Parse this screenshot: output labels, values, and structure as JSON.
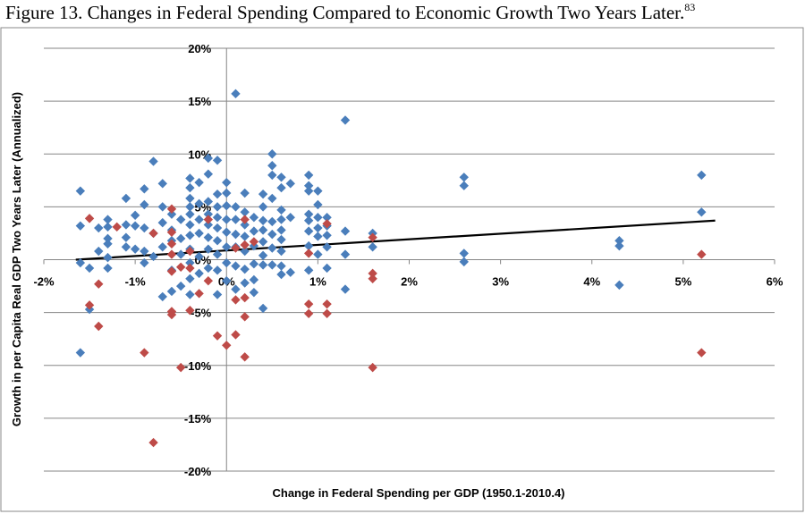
{
  "figure": {
    "title": "Figure 13. Changes in Federal Spending Compared to Economic Growth Two Years Later.",
    "footnote": "83"
  },
  "chart_data": {
    "type": "scatter",
    "title": "",
    "xlabel": "Change in Federal Spending per GDP (1950.1-2010.4)",
    "ylabel": "Growth in per Capita Real GDP Two Years Later (Annualized)",
    "xlim": [
      -2,
      6
    ],
    "ylim": [
      -20,
      20
    ],
    "x_ticks": [
      -2,
      -1,
      0,
      1,
      2,
      3,
      4,
      5,
      6
    ],
    "y_ticks": [
      -20,
      -15,
      -10,
      -5,
      0,
      5,
      10,
      15,
      20
    ],
    "x_tick_labels": [
      "-2%",
      "-1%",
      "0%",
      "1%",
      "2%",
      "3%",
      "4%",
      "5%",
      "6%"
    ],
    "y_tick_labels": [
      "-20%",
      "-15%",
      "-10%",
      "-5%",
      "0%",
      "5%",
      "10%",
      "15%",
      "20%"
    ],
    "grid": "horizontal",
    "colors": {
      "blue": "#4a7ebb",
      "red": "#be4b48",
      "trend": "#000000",
      "grid": "#868686"
    },
    "trendline": {
      "x1": -1.65,
      "y1": 0.0,
      "x2": 5.35,
      "y2": 3.7
    },
    "series": [
      {
        "color": "blue",
        "points": [
          [
            -1.6,
            6.5
          ],
          [
            -1.6,
            3.2
          ],
          [
            -1.6,
            -0.3
          ],
          [
            -1.6,
            -8.8
          ],
          [
            -1.5,
            -0.8
          ],
          [
            -1.5,
            -4.7
          ],
          [
            -1.4,
            3.0
          ],
          [
            -1.4,
            0.8
          ],
          [
            -1.3,
            3.8
          ],
          [
            -1.3,
            3.1
          ],
          [
            -1.3,
            2.0
          ],
          [
            -1.3,
            1.5
          ],
          [
            -1.3,
            0.2
          ],
          [
            -1.3,
            -0.8
          ],
          [
            -1.1,
            5.8
          ],
          [
            -1.1,
            3.3
          ],
          [
            -1.1,
            2.1
          ],
          [
            -1.1,
            1.2
          ],
          [
            -1.0,
            4.2
          ],
          [
            -1.0,
            3.2
          ],
          [
            -1.0,
            1.0
          ],
          [
            -0.9,
            6.7
          ],
          [
            -0.9,
            5.2
          ],
          [
            -0.9,
            3.0
          ],
          [
            -0.9,
            0.8
          ],
          [
            -0.9,
            -0.3
          ],
          [
            -0.8,
            9.3
          ],
          [
            -0.8,
            2.5
          ],
          [
            -0.8,
            0.3
          ],
          [
            -0.7,
            7.2
          ],
          [
            -0.7,
            5.0
          ],
          [
            -0.7,
            3.5
          ],
          [
            -0.7,
            1.2
          ],
          [
            -0.7,
            -3.5
          ],
          [
            -0.6,
            4.3
          ],
          [
            -0.6,
            2.8
          ],
          [
            -0.6,
            1.8
          ],
          [
            -0.6,
            -1.0
          ],
          [
            -0.6,
            -3.0
          ],
          [
            -0.5,
            3.8
          ],
          [
            -0.5,
            2.0
          ],
          [
            -0.5,
            0.5
          ],
          [
            -0.5,
            -2.5
          ],
          [
            -0.4,
            7.7
          ],
          [
            -0.4,
            6.8
          ],
          [
            -0.4,
            5.8
          ],
          [
            -0.4,
            5.0
          ],
          [
            -0.4,
            4.3
          ],
          [
            -0.4,
            3.3
          ],
          [
            -0.4,
            2.3
          ],
          [
            -0.4,
            1.0
          ],
          [
            -0.4,
            -0.3
          ],
          [
            -0.4,
            -1.8
          ],
          [
            -0.4,
            -3.3
          ],
          [
            -0.3,
            7.3
          ],
          [
            -0.3,
            5.3
          ],
          [
            -0.3,
            3.8
          ],
          [
            -0.3,
            2.5
          ],
          [
            -0.3,
            0.3
          ],
          [
            -0.3,
            -1.3
          ],
          [
            -0.2,
            9.6
          ],
          [
            -0.2,
            8.1
          ],
          [
            -0.2,
            5.5
          ],
          [
            -0.2,
            4.3
          ],
          [
            -0.2,
            3.3
          ],
          [
            -0.2,
            2.1
          ],
          [
            -0.2,
            1.0
          ],
          [
            -0.2,
            -0.8
          ],
          [
            -0.1,
            9.4
          ],
          [
            -0.1,
            6.2
          ],
          [
            -0.1,
            5.0
          ],
          [
            -0.1,
            4.0
          ],
          [
            -0.1,
            3.0
          ],
          [
            -0.1,
            1.8
          ],
          [
            -0.1,
            0.5
          ],
          [
            -0.1,
            -1.0
          ],
          [
            -0.1,
            -3.3
          ],
          [
            0.0,
            7.3
          ],
          [
            0.0,
            6.3
          ],
          [
            0.0,
            5.1
          ],
          [
            0.0,
            3.8
          ],
          [
            0.0,
            2.6
          ],
          [
            0.0,
            1.2
          ],
          [
            0.0,
            -0.3
          ],
          [
            0.0,
            -2.0
          ],
          [
            0.1,
            15.7
          ],
          [
            0.1,
            5.0
          ],
          [
            0.1,
            3.8
          ],
          [
            0.1,
            2.4
          ],
          [
            0.1,
            1.2
          ],
          [
            0.1,
            -0.6
          ],
          [
            0.1,
            -2.8
          ],
          [
            0.2,
            6.3
          ],
          [
            0.2,
            4.5
          ],
          [
            0.2,
            3.3
          ],
          [
            0.2,
            2.2
          ],
          [
            0.2,
            0.8
          ],
          [
            0.2,
            -0.9
          ],
          [
            0.2,
            -2.2
          ],
          [
            0.3,
            4.0
          ],
          [
            0.3,
            2.7
          ],
          [
            0.3,
            1.3
          ],
          [
            0.3,
            -0.4
          ],
          [
            0.3,
            -1.9
          ],
          [
            0.3,
            -3.1
          ],
          [
            0.4,
            6.2
          ],
          [
            0.4,
            5.0
          ],
          [
            0.4,
            3.7
          ],
          [
            0.4,
            2.8
          ],
          [
            0.4,
            1.7
          ],
          [
            0.4,
            0.4
          ],
          [
            0.4,
            -0.5
          ],
          [
            0.4,
            -4.6
          ],
          [
            0.5,
            10.0
          ],
          [
            0.5,
            8.9
          ],
          [
            0.5,
            8.0
          ],
          [
            0.5,
            5.8
          ],
          [
            0.5,
            3.6
          ],
          [
            0.5,
            2.4
          ],
          [
            0.5,
            1.1
          ],
          [
            0.5,
            -0.5
          ],
          [
            0.6,
            7.8
          ],
          [
            0.6,
            6.8
          ],
          [
            0.6,
            4.7
          ],
          [
            0.6,
            3.8
          ],
          [
            0.6,
            2.8
          ],
          [
            0.6,
            1.9
          ],
          [
            0.6,
            0.8
          ],
          [
            0.6,
            -0.6
          ],
          [
            0.6,
            -1.4
          ],
          [
            0.7,
            7.2
          ],
          [
            0.7,
            4.0
          ],
          [
            0.7,
            -1.2
          ],
          [
            0.9,
            8.0
          ],
          [
            0.9,
            7.0
          ],
          [
            0.9,
            6.5
          ],
          [
            0.9,
            4.3
          ],
          [
            0.9,
            3.7
          ],
          [
            0.9,
            2.7
          ],
          [
            0.9,
            1.3
          ],
          [
            0.9,
            -1.0
          ],
          [
            1.0,
            6.5
          ],
          [
            1.0,
            5.2
          ],
          [
            1.0,
            4.0
          ],
          [
            1.0,
            3.0
          ],
          [
            1.0,
            2.2
          ],
          [
            1.0,
            0.5
          ],
          [
            1.1,
            4.0
          ],
          [
            1.1,
            3.2
          ],
          [
            1.1,
            2.3
          ],
          [
            1.1,
            1.2
          ],
          [
            1.1,
            -0.8
          ],
          [
            1.3,
            13.2
          ],
          [
            1.3,
            2.7
          ],
          [
            1.3,
            0.5
          ],
          [
            1.3,
            -2.8
          ],
          [
            1.6,
            2.5
          ],
          [
            1.6,
            1.2
          ],
          [
            2.6,
            7.8
          ],
          [
            2.6,
            7.0
          ],
          [
            2.6,
            0.6
          ],
          [
            2.6,
            -0.2
          ],
          [
            4.3,
            1.8
          ],
          [
            4.3,
            1.3
          ],
          [
            4.3,
            -2.4
          ],
          [
            5.2,
            8.0
          ],
          [
            5.2,
            4.5
          ]
        ]
      },
      {
        "color": "red",
        "points": [
          [
            -1.5,
            3.9
          ],
          [
            -1.5,
            -4.3
          ],
          [
            -1.4,
            -2.3
          ],
          [
            -1.4,
            -6.3
          ],
          [
            -1.2,
            3.1
          ],
          [
            -0.9,
            -8.8
          ],
          [
            -0.8,
            2.5
          ],
          [
            -0.8,
            -17.3
          ],
          [
            -0.6,
            4.8
          ],
          [
            -0.6,
            2.6
          ],
          [
            -0.6,
            1.5
          ],
          [
            -0.6,
            0.5
          ],
          [
            -0.6,
            -1.1
          ],
          [
            -0.6,
            -4.9
          ],
          [
            -0.6,
            -5.2
          ],
          [
            -0.5,
            -0.7
          ],
          [
            -0.5,
            -10.2
          ],
          [
            -0.4,
            0.8
          ],
          [
            -0.4,
            -0.8
          ],
          [
            -0.4,
            -4.8
          ],
          [
            -0.3,
            -3.2
          ],
          [
            -0.2,
            3.8
          ],
          [
            -0.2,
            -2.0
          ],
          [
            -0.1,
            -7.2
          ],
          [
            0.0,
            -8.1
          ],
          [
            0.1,
            1.1
          ],
          [
            0.1,
            -3.8
          ],
          [
            0.1,
            -7.1
          ],
          [
            0.2,
            3.8
          ],
          [
            0.2,
            1.4
          ],
          [
            0.2,
            -3.6
          ],
          [
            0.2,
            -5.4
          ],
          [
            0.2,
            -9.2
          ],
          [
            0.3,
            1.7
          ],
          [
            0.9,
            0.6
          ],
          [
            0.9,
            -4.2
          ],
          [
            0.9,
            -5.1
          ],
          [
            1.1,
            3.4
          ],
          [
            1.1,
            -4.2
          ],
          [
            1.1,
            -5.1
          ],
          [
            1.6,
            2.1
          ],
          [
            1.6,
            -1.3
          ],
          [
            1.6,
            -1.8
          ],
          [
            1.6,
            -10.2
          ],
          [
            5.2,
            0.5
          ],
          [
            5.2,
            -8.8
          ]
        ]
      }
    ]
  }
}
